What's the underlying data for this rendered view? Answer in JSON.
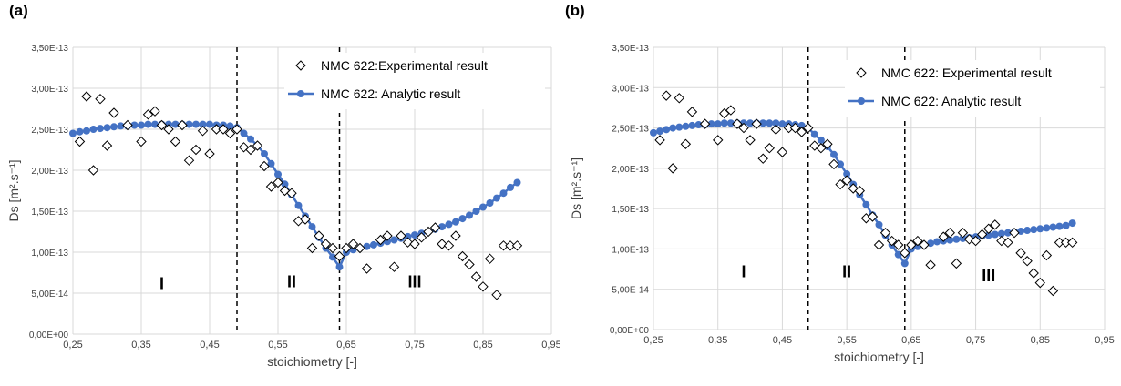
{
  "colors": {
    "series_line": "#4472c4",
    "marker_stroke": "#000000",
    "grid": "#d9d9d9",
    "divider": "#000000"
  },
  "chart_data": [
    {
      "type": "scatter",
      "panel_label": "(a)",
      "xlabel": "stoichiometry [-]",
      "ylabel": "Ds [m².s⁻¹]",
      "xlim": [
        0.25,
        0.95
      ],
      "ylim": [
        0,
        3.5e-13
      ],
      "x_ticks": [
        "0,25",
        "0,35",
        "0,45",
        "0,55",
        "0,65",
        "0,75",
        "0,85",
        "0,95"
      ],
      "y_ticks": [
        "0,00E+00",
        "5,00E-14",
        "1,00E-13",
        "1,50E-13",
        "2,00E-13",
        "2,50E-13",
        "3,00E-13",
        "3,50E-13"
      ],
      "grid": true,
      "legend_position": "top-right",
      "dividers": [
        0.49,
        0.64
      ],
      "regions": [
        {
          "label": "I",
          "x": 0.38,
          "y": 5.5e-14
        },
        {
          "label": "II",
          "x": 0.57,
          "y": 5.7e-14
        },
        {
          "label": "III",
          "x": 0.75,
          "y": 5.7e-14
        }
      ],
      "series": [
        {
          "name": "NMC 622:Experimental result",
          "marker": "diamond",
          "x": [
            0.26,
            0.27,
            0.28,
            0.29,
            0.3,
            0.31,
            0.33,
            0.35,
            0.36,
            0.37,
            0.38,
            0.39,
            0.4,
            0.41,
            0.42,
            0.43,
            0.44,
            0.45,
            0.46,
            0.47,
            0.48,
            0.49,
            0.5,
            0.51,
            0.52,
            0.53,
            0.54,
            0.55,
            0.56,
            0.57,
            0.58,
            0.59,
            0.6,
            0.61,
            0.62,
            0.63,
            0.64,
            0.65,
            0.66,
            0.67,
            0.68,
            0.7,
            0.71,
            0.72,
            0.73,
            0.74,
            0.75,
            0.76,
            0.77,
            0.78,
            0.79,
            0.8,
            0.81,
            0.82,
            0.83,
            0.84,
            0.85,
            0.86,
            0.87,
            0.88,
            0.89,
            0.9
          ],
          "y": [
            2.35e-13,
            2.9e-13,
            2e-13,
            2.87e-13,
            2.3e-13,
            2.7e-13,
            2.55e-13,
            2.35e-13,
            2.68e-13,
            2.72e-13,
            2.55e-13,
            2.5e-13,
            2.35e-13,
            2.55e-13,
            2.12e-13,
            2.25e-13,
            2.48e-13,
            2.2e-13,
            2.5e-13,
            2.5e-13,
            2.45e-13,
            2.5e-13,
            2.28e-13,
            2.25e-13,
            2.3e-13,
            2.05e-13,
            1.8e-13,
            1.85e-13,
            1.75e-13,
            1.72e-13,
            1.38e-13,
            1.4e-13,
            1.05e-13,
            1.2e-13,
            1.1e-13,
            1.05e-13,
            9.5e-14,
            1.05e-13,
            1.1e-13,
            1.05e-13,
            8e-14,
            1.15e-13,
            1.2e-13,
            8.2e-14,
            1.2e-13,
            1.12e-13,
            1.1e-13,
            1.18e-13,
            1.25e-13,
            1.3e-13,
            1.1e-13,
            1.08e-13,
            1.2e-13,
            9.5e-14,
            8.5e-14,
            7e-14,
            5.8e-14,
            9.2e-14,
            4.8e-14,
            1.08e-13,
            1.08e-13,
            1.08e-13
          ]
        },
        {
          "name": "NMC 622: Analytic result",
          "marker": "circle",
          "x": [
            0.25,
            0.26,
            0.27,
            0.28,
            0.29,
            0.3,
            0.31,
            0.32,
            0.33,
            0.34,
            0.35,
            0.36,
            0.37,
            0.38,
            0.39,
            0.4,
            0.41,
            0.42,
            0.43,
            0.44,
            0.45,
            0.46,
            0.47,
            0.48,
            0.49,
            0.5,
            0.51,
            0.52,
            0.53,
            0.54,
            0.55,
            0.56,
            0.57,
            0.58,
            0.59,
            0.6,
            0.61,
            0.62,
            0.63,
            0.64,
            0.65,
            0.66,
            0.67,
            0.68,
            0.69,
            0.7,
            0.71,
            0.72,
            0.73,
            0.74,
            0.75,
            0.76,
            0.77,
            0.78,
            0.79,
            0.8,
            0.81,
            0.82,
            0.83,
            0.84,
            0.85,
            0.86,
            0.87,
            0.88,
            0.89,
            0.9
          ],
          "y": [
            2.45e-13,
            2.47e-13,
            2.48e-13,
            2.5e-13,
            2.51e-13,
            2.52e-13,
            2.53e-13,
            2.54e-13,
            2.54e-13,
            2.55e-13,
            2.55e-13,
            2.56e-13,
            2.56e-13,
            2.56e-13,
            2.56e-13,
            2.56e-13,
            2.56e-13,
            2.56e-13,
            2.56e-13,
            2.56e-13,
            2.56e-13,
            2.55e-13,
            2.55e-13,
            2.54e-13,
            2.52e-13,
            2.45e-13,
            2.38e-13,
            2.3e-13,
            2.2e-13,
            2.08e-13,
            1.95e-13,
            1.83e-13,
            1.7e-13,
            1.57e-13,
            1.44e-13,
            1.31e-13,
            1.18e-13,
            1.05e-13,
            9.4e-14,
            8.2e-14,
            1e-13,
            1.03e-13,
            1.05e-13,
            1.07e-13,
            1.09e-13,
            1.11e-13,
            1.13e-13,
            1.15e-13,
            1.17e-13,
            1.19e-13,
            1.21e-13,
            1.23e-13,
            1.25e-13,
            1.28e-13,
            1.31e-13,
            1.34e-13,
            1.37e-13,
            1.41e-13,
            1.45e-13,
            1.5e-13,
            1.55e-13,
            1.6e-13,
            1.66e-13,
            1.72e-13,
            1.79e-13,
            1.85e-13
          ]
        }
      ]
    },
    {
      "type": "scatter",
      "panel_label": "(b)",
      "xlabel": "stoichiometry [-]",
      "ylabel": "Ds [m².s⁻¹]",
      "xlim": [
        0.25,
        0.95
      ],
      "ylim": [
        0,
        3.5e-13
      ],
      "x_ticks": [
        "0,25",
        "0,35",
        "0,45",
        "0,55",
        "0,65",
        "0,75",
        "0,85",
        "0,95"
      ],
      "y_ticks": [
        "0,00E+00",
        "5,00E-14",
        "1,00E-13",
        "1,50E-13",
        "2,00E-13",
        "2,50E-13",
        "3,00E-13",
        "3,50E-13"
      ],
      "grid": true,
      "legend_position": "top-right",
      "dividers": [
        0.49,
        0.64
      ],
      "regions": [
        {
          "label": "I",
          "x": 0.39,
          "y": 6.5e-14
        },
        {
          "label": "II",
          "x": 0.55,
          "y": 6.5e-14
        },
        {
          "label": "III",
          "x": 0.77,
          "y": 6e-14
        }
      ],
      "series": [
        {
          "name": "NMC 622: Experimental result",
          "marker": "diamond",
          "x": [
            0.26,
            0.27,
            0.28,
            0.29,
            0.3,
            0.31,
            0.33,
            0.35,
            0.36,
            0.37,
            0.38,
            0.39,
            0.4,
            0.41,
            0.42,
            0.43,
            0.44,
            0.45,
            0.46,
            0.47,
            0.48,
            0.49,
            0.5,
            0.51,
            0.52,
            0.53,
            0.54,
            0.55,
            0.56,
            0.57,
            0.58,
            0.59,
            0.6,
            0.61,
            0.62,
            0.63,
            0.64,
            0.65,
            0.66,
            0.67,
            0.68,
            0.7,
            0.71,
            0.72,
            0.73,
            0.74,
            0.75,
            0.76,
            0.77,
            0.78,
            0.79,
            0.8,
            0.81,
            0.82,
            0.83,
            0.84,
            0.85,
            0.86,
            0.87,
            0.88,
            0.89,
            0.9
          ],
          "y": [
            2.35e-13,
            2.9e-13,
            2e-13,
            2.87e-13,
            2.3e-13,
            2.7e-13,
            2.55e-13,
            2.35e-13,
            2.68e-13,
            2.72e-13,
            2.55e-13,
            2.5e-13,
            2.35e-13,
            2.55e-13,
            2.12e-13,
            2.25e-13,
            2.48e-13,
            2.2e-13,
            2.5e-13,
            2.5e-13,
            2.45e-13,
            2.5e-13,
            2.28e-13,
            2.25e-13,
            2.3e-13,
            2.05e-13,
            1.8e-13,
            1.85e-13,
            1.75e-13,
            1.72e-13,
            1.38e-13,
            1.4e-13,
            1.05e-13,
            1.2e-13,
            1.1e-13,
            1.05e-13,
            9.5e-14,
            1.05e-13,
            1.1e-13,
            1.05e-13,
            8e-14,
            1.15e-13,
            1.2e-13,
            8.2e-14,
            1.2e-13,
            1.12e-13,
            1.1e-13,
            1.18e-13,
            1.25e-13,
            1.3e-13,
            1.1e-13,
            1.08e-13,
            1.2e-13,
            9.5e-14,
            8.5e-14,
            7e-14,
            5.8e-14,
            9.2e-14,
            4.8e-14,
            1.08e-13,
            1.08e-13,
            1.08e-13
          ]
        },
        {
          "name": "NMC 622: Analytic result",
          "marker": "circle",
          "x": [
            0.25,
            0.26,
            0.27,
            0.28,
            0.29,
            0.3,
            0.31,
            0.32,
            0.33,
            0.34,
            0.35,
            0.36,
            0.37,
            0.38,
            0.39,
            0.4,
            0.41,
            0.42,
            0.43,
            0.44,
            0.45,
            0.46,
            0.47,
            0.48,
            0.49,
            0.5,
            0.51,
            0.52,
            0.53,
            0.54,
            0.55,
            0.56,
            0.57,
            0.58,
            0.59,
            0.6,
            0.61,
            0.62,
            0.63,
            0.64,
            0.65,
            0.66,
            0.67,
            0.68,
            0.69,
            0.7,
            0.71,
            0.72,
            0.73,
            0.74,
            0.75,
            0.76,
            0.77,
            0.78,
            0.79,
            0.8,
            0.81,
            0.82,
            0.83,
            0.84,
            0.85,
            0.86,
            0.87,
            0.88,
            0.89,
            0.9
          ],
          "y": [
            2.44e-13,
            2.46e-13,
            2.48e-13,
            2.5e-13,
            2.51e-13,
            2.52e-13,
            2.53e-13,
            2.54e-13,
            2.54e-13,
            2.55e-13,
            2.55e-13,
            2.56e-13,
            2.56e-13,
            2.56e-13,
            2.56e-13,
            2.56e-13,
            2.56e-13,
            2.56e-13,
            2.56e-13,
            2.56e-13,
            2.55e-13,
            2.55e-13,
            2.54e-13,
            2.53e-13,
            2.5e-13,
            2.42e-13,
            2.35e-13,
            2.27e-13,
            2.17e-13,
            2.05e-13,
            1.93e-13,
            1.8e-13,
            1.67e-13,
            1.55e-13,
            1.42e-13,
            1.3e-13,
            1.17e-13,
            1.05e-13,
            9.3e-14,
            8.2e-14,
            1e-13,
            1.03e-13,
            1.05e-13,
            1.07e-13,
            1.09e-13,
            1.1e-13,
            1.11e-13,
            1.12e-13,
            1.13e-13,
            1.14e-13,
            1.15e-13,
            1.16e-13,
            1.17e-13,
            1.18e-13,
            1.19e-13,
            1.2e-13,
            1.21e-13,
            1.22e-13,
            1.23e-13,
            1.24e-13,
            1.25e-13,
            1.26e-13,
            1.27e-13,
            1.28e-13,
            1.29e-13,
            1.32e-13
          ]
        }
      ]
    }
  ]
}
